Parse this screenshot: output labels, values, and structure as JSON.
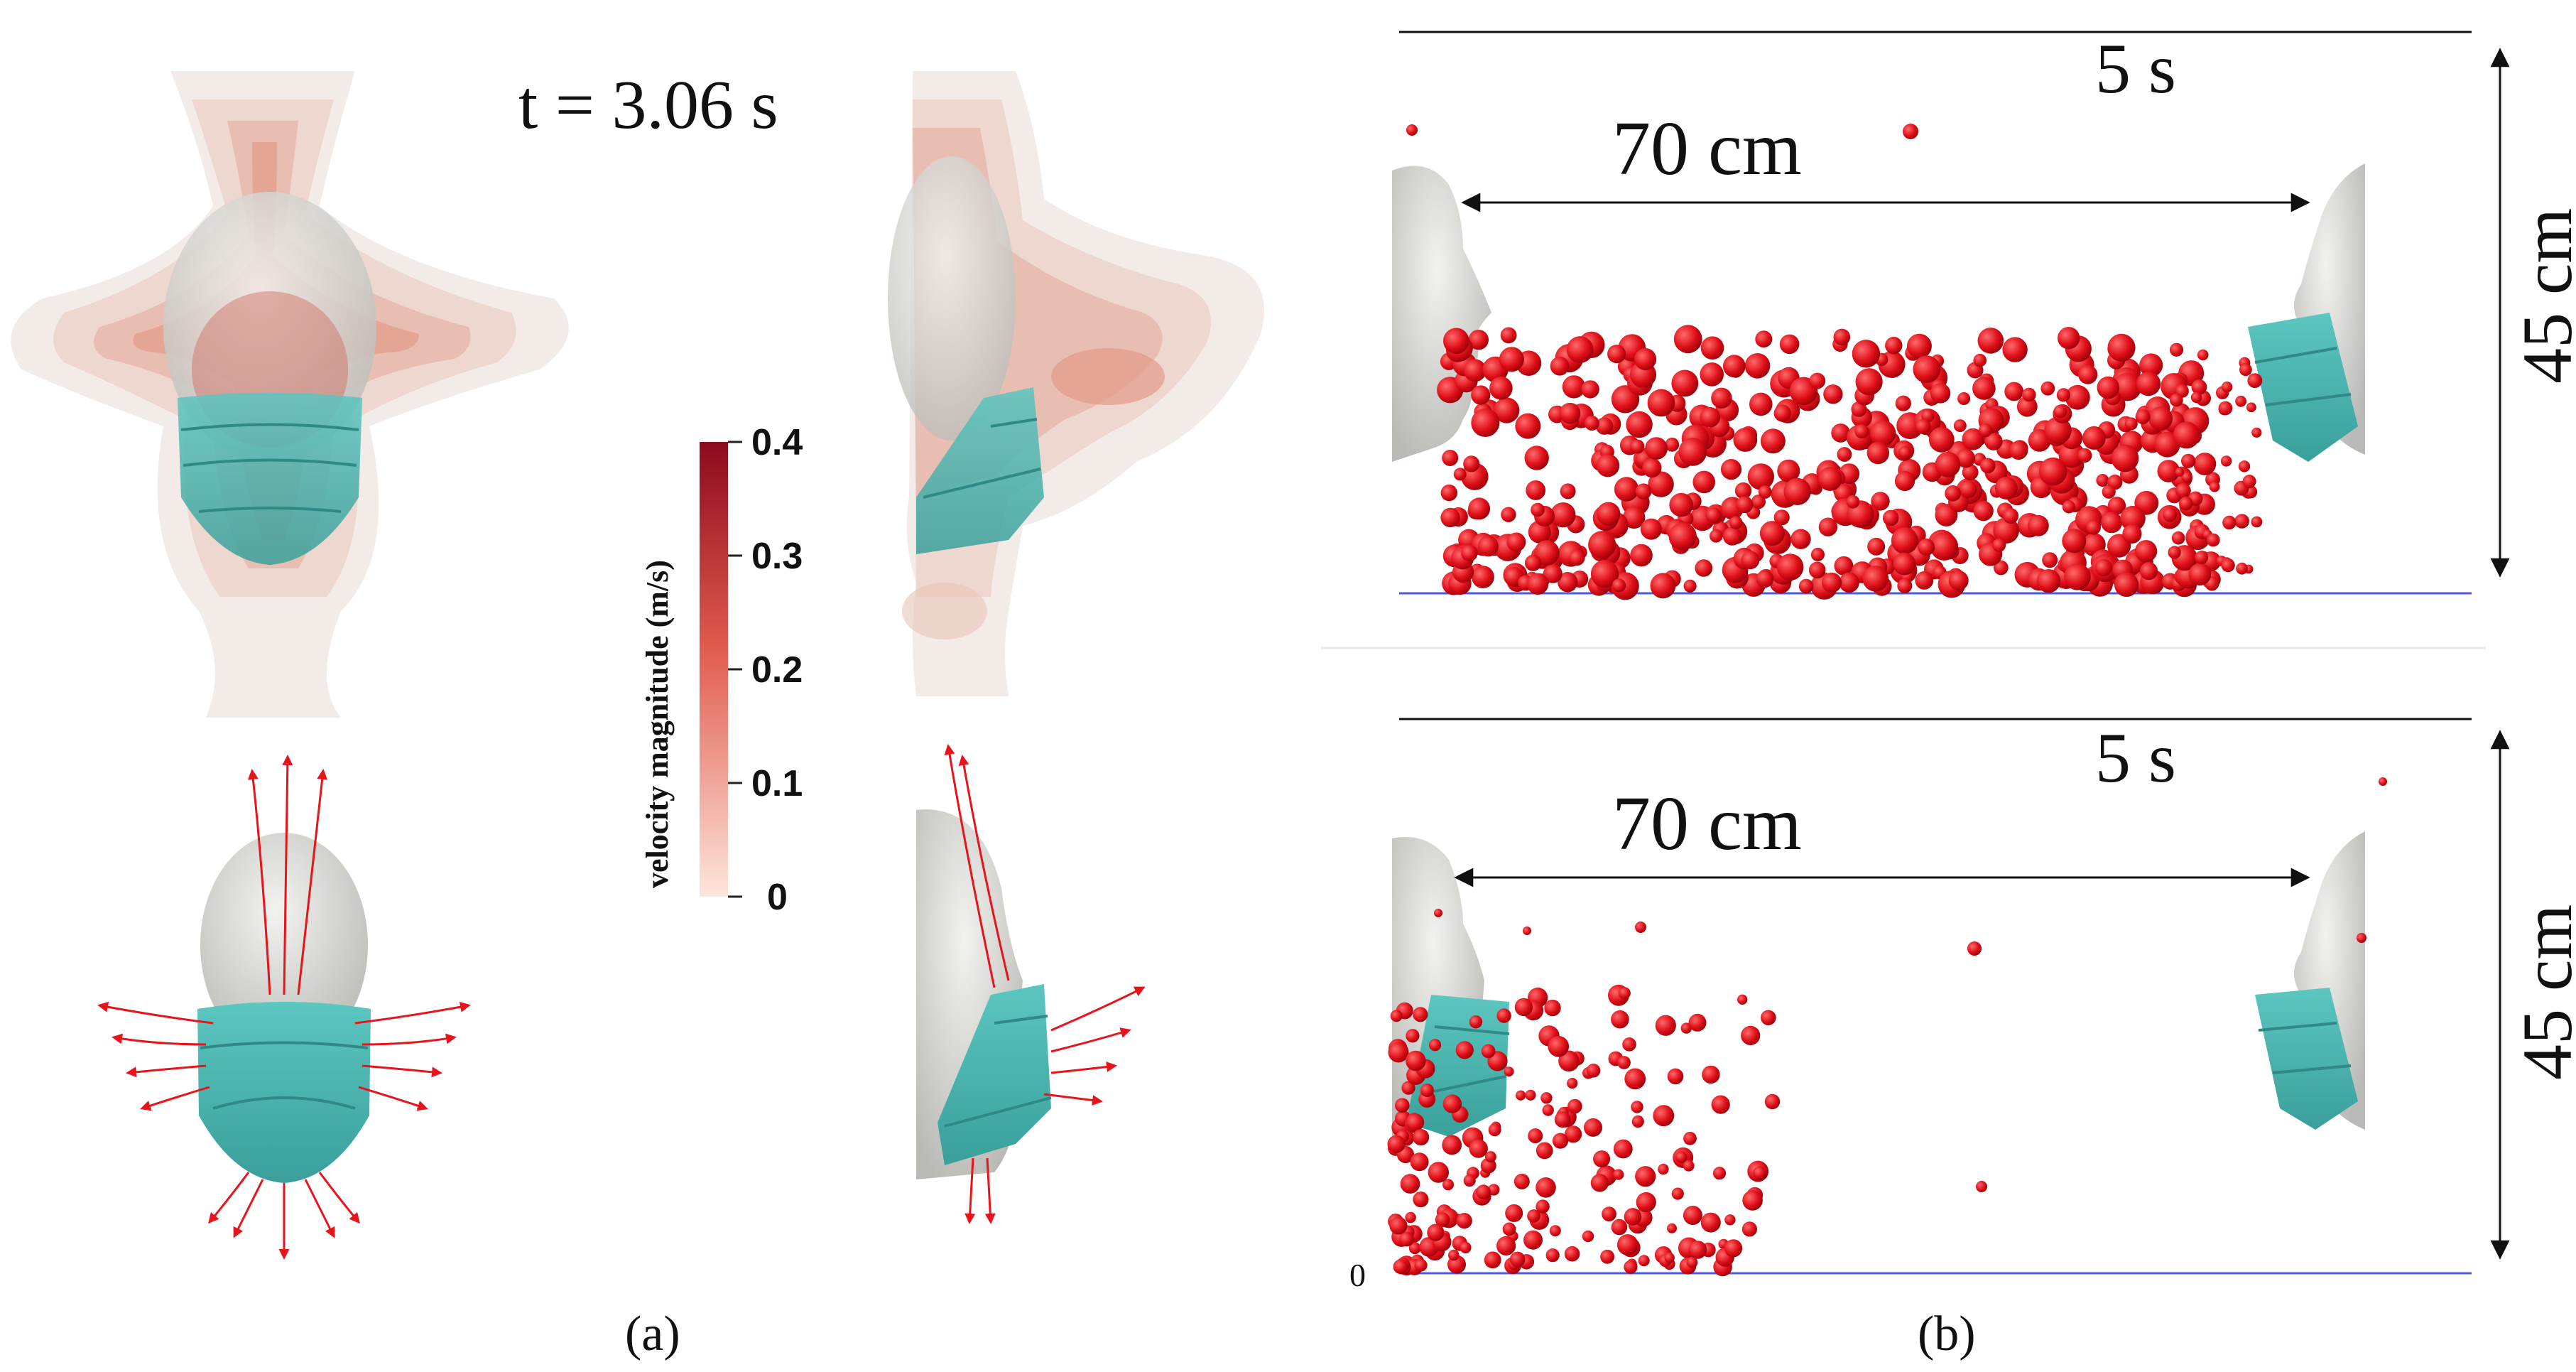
{
  "panel_a": {
    "time_label": "t = 3.06 s",
    "colorbar": {
      "title": "velocity magnitude (m/s)",
      "ticks": [
        "0.4",
        "0.3",
        "0.2",
        "0.1",
        "0"
      ],
      "colors": {
        "max": "#8b0b1e",
        "mid": "#e8705c",
        "min": "#fde6dc"
      }
    },
    "caption": "(a)"
  },
  "panel_b": {
    "top": {
      "distance_label": "70 cm",
      "time_label": "5 s",
      "height_label": "45 cm"
    },
    "bottom": {
      "distance_label": "70 cm",
      "time_label": "5 s",
      "height_label": "45 cm",
      "floor_label": "0"
    },
    "caption": "(b)"
  },
  "colors": {
    "mask": "#4bb7b1",
    "droplet": "#e0101a",
    "floor_line": "#4b5bdc",
    "flow_arrow": "#e8141c",
    "head": "#d9d9d6"
  }
}
